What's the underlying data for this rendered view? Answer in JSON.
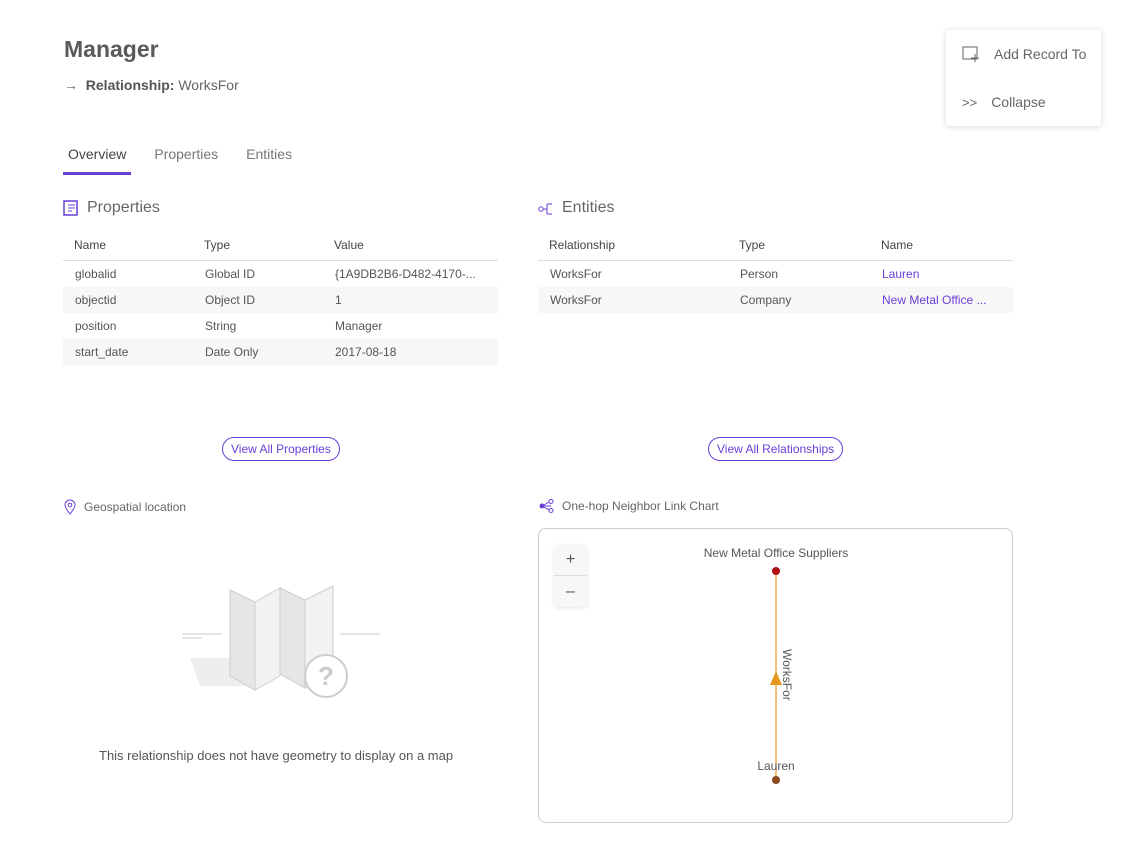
{
  "header": {
    "title": "Manager",
    "relationship_label": "Relationship:",
    "relationship_value": "WorksFor"
  },
  "tabs": [
    {
      "label": "Overview",
      "active": true
    },
    {
      "label": "Properties"
    },
    {
      "label": "Entities"
    }
  ],
  "menu": {
    "add_record": "Add Record To",
    "collapse": "Collapse"
  },
  "properties": {
    "title": "Properties",
    "columns": [
      "Name",
      "Type",
      "Value"
    ],
    "rows": [
      [
        "globalid",
        "Global ID",
        "{1A9DB2B6-D482-4170-..."
      ],
      [
        "objectid",
        "Object ID",
        "1"
      ],
      [
        "position",
        "String",
        "Manager"
      ],
      [
        "start_date",
        "Date Only",
        "2017-08-18"
      ]
    ],
    "button": "View All Properties"
  },
  "entities": {
    "title": "Entities",
    "columns": [
      "Relationship",
      "Type",
      "Name"
    ],
    "rows": [
      [
        "WorksFor",
        "Person",
        "Lauren"
      ],
      [
        "WorksFor",
        "Company",
        "New Metal Office ..."
      ]
    ],
    "button": "View All Relationships"
  },
  "geo": {
    "title": "Geospatial location",
    "message": "This relationship does not have geometry to display on a map"
  },
  "linkchart": {
    "title": "One-hop Neighbor Link Chart",
    "zoom_in": "+",
    "zoom_out": "–",
    "node_top": "New Metal Office Suppliers",
    "node_bottom": "Lauren",
    "edge_label": "WorksFor",
    "accent": "#6a3fd8",
    "edge_color": "#e8961e",
    "node_top_color": "#b01010",
    "node_bottom_color": "#8a4a1a"
  }
}
